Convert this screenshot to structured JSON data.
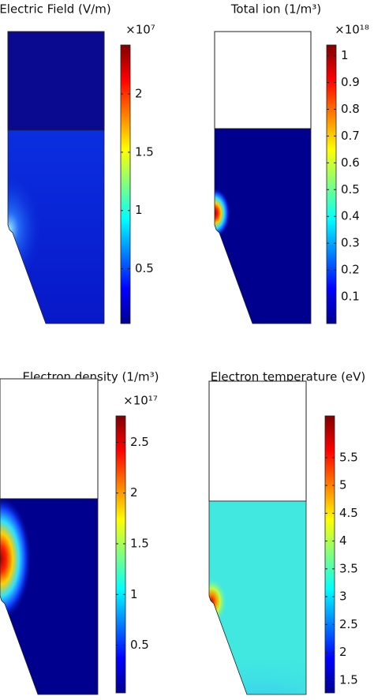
{
  "chart_data": [
    {
      "type": "colormap",
      "title": "Electric Field (V/m)",
      "multiplier": "×10⁷",
      "colormap": "jet",
      "clim": [
        0.03,
        2.42
      ],
      "cticks": [
        0.5,
        1,
        1.5,
        2
      ]
    },
    {
      "type": "colormap",
      "title": "Total ion (1/m³)",
      "multiplier": "×10¹⁸",
      "colormap": "jet",
      "clim": [
        0,
        1.04
      ],
      "cticks": [
        0.1,
        0.2,
        0.3,
        0.4,
        0.5,
        0.6,
        0.7,
        0.8,
        0.9,
        1
      ]
    },
    {
      "type": "colormap",
      "title": "Electron density (1/m³)",
      "multiplier": "×10¹⁷",
      "colormap": "jet",
      "clim": [
        0.03,
        2.76
      ],
      "cticks": [
        0.5,
        1,
        1.5,
        2,
        2.5
      ]
    },
    {
      "type": "colormap",
      "title": "Electron temperature (eV)",
      "colormap": "jet",
      "clim": [
        1.27,
        6.25
      ],
      "cticks": [
        1.5,
        2,
        2.5,
        3,
        3.5,
        4,
        4.5,
        5,
        5.5
      ]
    }
  ]
}
